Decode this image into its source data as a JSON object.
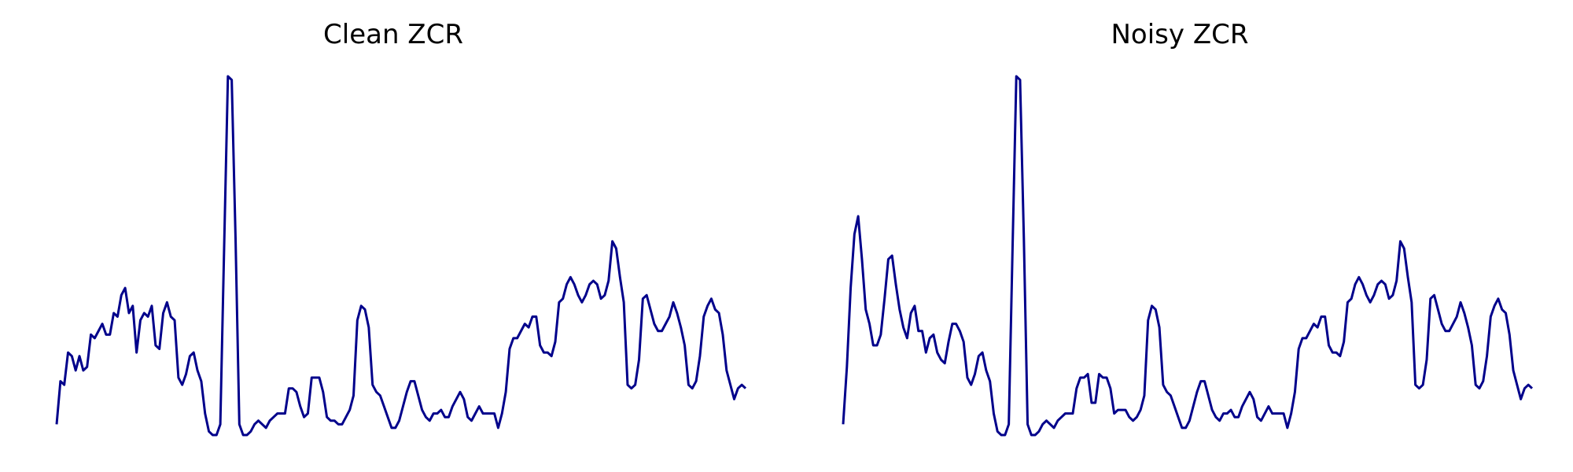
{
  "colors": {
    "line": "#00008b",
    "background": "#ffffff"
  },
  "chart_data": [
    {
      "type": "line",
      "title": "Clean ZCR",
      "axes_visible": false,
      "grid": false,
      "ylim": [
        0,
        1
      ],
      "values": [
        0.03,
        0.15,
        0.14,
        0.23,
        0.22,
        0.18,
        0.22,
        0.18,
        0.19,
        0.28,
        0.27,
        0.29,
        0.31,
        0.28,
        0.28,
        0.34,
        0.33,
        0.39,
        0.41,
        0.34,
        0.36,
        0.23,
        0.32,
        0.34,
        0.33,
        0.36,
        0.25,
        0.24,
        0.34,
        0.37,
        0.33,
        0.32,
        0.16,
        0.14,
        0.17,
        0.22,
        0.23,
        0.18,
        0.15,
        0.06,
        0.01,
        0.0,
        0.0,
        0.03,
        0.52,
        1.0,
        0.99,
        0.55,
        0.03,
        0.0,
        0.0,
        0.01,
        0.03,
        0.04,
        0.03,
        0.02,
        0.04,
        0.05,
        0.06,
        0.06,
        0.06,
        0.13,
        0.13,
        0.12,
        0.08,
        0.05,
        0.06,
        0.16,
        0.16,
        0.16,
        0.12,
        0.05,
        0.04,
        0.04,
        0.03,
        0.03,
        0.05,
        0.07,
        0.11,
        0.32,
        0.36,
        0.35,
        0.3,
        0.14,
        0.12,
        0.11,
        0.08,
        0.05,
        0.02,
        0.02,
        0.04,
        0.08,
        0.12,
        0.15,
        0.15,
        0.11,
        0.07,
        0.05,
        0.04,
        0.06,
        0.06,
        0.07,
        0.05,
        0.05,
        0.08,
        0.1,
        0.12,
        0.1,
        0.05,
        0.04,
        0.06,
        0.08,
        0.06,
        0.06,
        0.06,
        0.06,
        0.02,
        0.06,
        0.12,
        0.24,
        0.27,
        0.27,
        0.29,
        0.31,
        0.3,
        0.33,
        0.33,
        0.25,
        0.23,
        0.23,
        0.22,
        0.26,
        0.37,
        0.38,
        0.42,
        0.44,
        0.42,
        0.39,
        0.37,
        0.39,
        0.42,
        0.43,
        0.42,
        0.38,
        0.39,
        0.43,
        0.54,
        0.52,
        0.44,
        0.37,
        0.14,
        0.13,
        0.14,
        0.21,
        0.38,
        0.39,
        0.35,
        0.31,
        0.29,
        0.29,
        0.31,
        0.33,
        0.37,
        0.34,
        0.3,
        0.25,
        0.14,
        0.13,
        0.15,
        0.22,
        0.33,
        0.36,
        0.38,
        0.35,
        0.34,
        0.28,
        0.18,
        0.14,
        0.1,
        0.13,
        0.14,
        0.13
      ]
    },
    {
      "type": "line",
      "title": "Noisy ZCR",
      "axes_visible": false,
      "grid": false,
      "ylim": [
        0,
        1
      ],
      "values": [
        0.03,
        0.19,
        0.41,
        0.56,
        0.61,
        0.49,
        0.35,
        0.31,
        0.25,
        0.25,
        0.28,
        0.38,
        0.49,
        0.5,
        0.42,
        0.35,
        0.3,
        0.27,
        0.34,
        0.36,
        0.29,
        0.29,
        0.23,
        0.27,
        0.28,
        0.23,
        0.21,
        0.2,
        0.26,
        0.31,
        0.31,
        0.29,
        0.26,
        0.16,
        0.14,
        0.17,
        0.22,
        0.23,
        0.18,
        0.15,
        0.06,
        0.01,
        0.0,
        0.0,
        0.03,
        0.52,
        1.0,
        0.99,
        0.55,
        0.03,
        0.0,
        0.0,
        0.01,
        0.03,
        0.04,
        0.03,
        0.02,
        0.04,
        0.05,
        0.06,
        0.06,
        0.06,
        0.13,
        0.16,
        0.16,
        0.17,
        0.09,
        0.09,
        0.17,
        0.16,
        0.16,
        0.13,
        0.06,
        0.07,
        0.07,
        0.07,
        0.05,
        0.04,
        0.05,
        0.07,
        0.11,
        0.32,
        0.36,
        0.35,
        0.3,
        0.14,
        0.12,
        0.11,
        0.08,
        0.05,
        0.02,
        0.02,
        0.04,
        0.08,
        0.12,
        0.15,
        0.15,
        0.11,
        0.07,
        0.05,
        0.04,
        0.06,
        0.06,
        0.07,
        0.05,
        0.05,
        0.08,
        0.1,
        0.12,
        0.1,
        0.05,
        0.04,
        0.06,
        0.08,
        0.06,
        0.06,
        0.06,
        0.06,
        0.02,
        0.06,
        0.12,
        0.24,
        0.27,
        0.27,
        0.29,
        0.31,
        0.3,
        0.33,
        0.33,
        0.25,
        0.23,
        0.23,
        0.22,
        0.26,
        0.37,
        0.38,
        0.42,
        0.44,
        0.42,
        0.39,
        0.37,
        0.39,
        0.42,
        0.43,
        0.42,
        0.38,
        0.39,
        0.43,
        0.54,
        0.52,
        0.44,
        0.37,
        0.14,
        0.13,
        0.14,
        0.21,
        0.38,
        0.39,
        0.35,
        0.31,
        0.29,
        0.29,
        0.31,
        0.33,
        0.37,
        0.34,
        0.3,
        0.25,
        0.14,
        0.13,
        0.15,
        0.22,
        0.33,
        0.36,
        0.38,
        0.35,
        0.34,
        0.28,
        0.18,
        0.14,
        0.1,
        0.13,
        0.14,
        0.13
      ]
    }
  ]
}
